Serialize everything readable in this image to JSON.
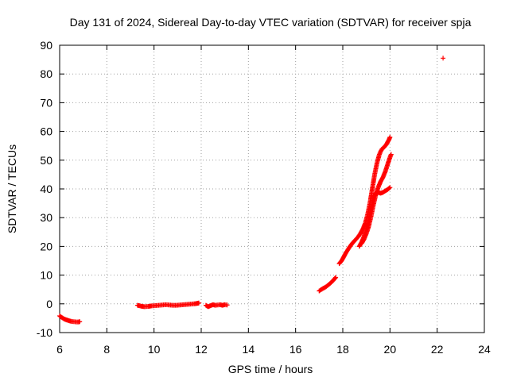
{
  "chart_data": {
    "type": "scatter",
    "title": "Day 131 of 2024, Sidereal Day-to-day VTEC variation (SDTVAR) for receiver spja",
    "xlabel": "GPS time / hours",
    "ylabel": "SDTVAR / TECUs",
    "xlim": [
      6,
      24
    ],
    "ylim": [
      -10,
      90
    ],
    "xticks": [
      "6",
      "8",
      "10",
      "12",
      "14",
      "16",
      "18",
      "20",
      "22",
      "24"
    ],
    "yticks": [
      "-10",
      "0",
      "10",
      "20",
      "30",
      "40",
      "50",
      "60",
      "70",
      "80",
      "90"
    ],
    "grid": true,
    "marker": "+",
    "color": "#ff0000",
    "series": [
      {
        "name": "SDTVAR",
        "segments": [
          [
            [
              6.0,
              -4.2
            ],
            [
              6.1,
              -4.8
            ],
            [
              6.2,
              -5.3
            ],
            [
              6.3,
              -5.6
            ],
            [
              6.4,
              -5.9
            ],
            [
              6.5,
              -6.1
            ],
            [
              6.6,
              -6.2
            ],
            [
              6.7,
              -6.3
            ],
            [
              6.8,
              -6.3
            ],
            [
              6.85,
              -6.2
            ]
          ],
          [
            [
              9.3,
              -0.5
            ],
            [
              9.45,
              -0.8
            ],
            [
              9.6,
              -1.0
            ],
            [
              9.75,
              -0.9
            ],
            [
              9.9,
              -0.7
            ],
            [
              10.05,
              -0.6
            ],
            [
              10.2,
              -0.5
            ],
            [
              10.35,
              -0.4
            ],
            [
              10.5,
              -0.3
            ],
            [
              10.65,
              -0.4
            ],
            [
              10.8,
              -0.5
            ],
            [
              10.95,
              -0.5
            ],
            [
              11.1,
              -0.4
            ],
            [
              11.25,
              -0.3
            ],
            [
              11.4,
              -0.2
            ],
            [
              11.55,
              -0.1
            ],
            [
              11.7,
              0.0
            ],
            [
              11.85,
              0.2
            ],
            [
              11.9,
              0.3
            ]
          ],
          [
            [
              12.2,
              -0.5
            ],
            [
              12.3,
              -1.0
            ],
            [
              12.4,
              -0.6
            ],
            [
              12.5,
              -0.3
            ],
            [
              12.6,
              -0.5
            ],
            [
              12.7,
              -0.4
            ],
            [
              12.8,
              -0.3
            ],
            [
              12.9,
              -0.5
            ],
            [
              13.0,
              -0.3
            ],
            [
              13.1,
              -0.4
            ]
          ],
          [
            [
              17.0,
              4.5
            ],
            [
              17.15,
              5.3
            ],
            [
              17.3,
              6.0
            ],
            [
              17.45,
              7.0
            ],
            [
              17.6,
              8.2
            ],
            [
              17.7,
              9.2
            ]
          ],
          [
            [
              17.85,
              14.0
            ],
            [
              17.95,
              15.0
            ],
            [
              18.05,
              16.5
            ],
            [
              18.15,
              18.0
            ],
            [
              18.25,
              19.3
            ],
            [
              18.35,
              20.5
            ],
            [
              18.45,
              21.5
            ],
            [
              18.55,
              22.4
            ],
            [
              18.65,
              23.3
            ],
            [
              18.75,
              24.5
            ],
            [
              18.85,
              26.0
            ],
            [
              18.95,
              28.0
            ],
            [
              19.05,
              31.0
            ],
            [
              19.15,
              35.0
            ],
            [
              19.25,
              40.0
            ],
            [
              19.35,
              45.0
            ],
            [
              19.45,
              49.0
            ],
            [
              19.55,
              52.0
            ],
            [
              19.65,
              53.8
            ],
            [
              19.75,
              54.5
            ],
            [
              19.85,
              55.5
            ],
            [
              19.95,
              57.0
            ],
            [
              20.0,
              58.0
            ]
          ],
          [
            [
              18.7,
              20.0
            ],
            [
              18.8,
              21.5
            ],
            [
              18.9,
              23.5
            ],
            [
              19.0,
              26.0
            ],
            [
              19.1,
              29.5
            ],
            [
              19.2,
              33.5
            ],
            [
              19.3,
              37.0
            ],
            [
              19.4,
              38.5
            ],
            [
              19.5,
              38.8
            ],
            [
              19.6,
              38.5
            ],
            [
              19.7,
              38.8
            ],
            [
              19.8,
              39.3
            ],
            [
              19.9,
              39.8
            ],
            [
              20.0,
              40.5
            ]
          ],
          [
            [
              18.8,
              21.0
            ],
            [
              18.9,
              22.5
            ],
            [
              19.0,
              24.5
            ],
            [
              19.1,
              27.0
            ],
            [
              19.2,
              30.5
            ],
            [
              19.3,
              34.5
            ],
            [
              19.4,
              38.0
            ],
            [
              19.5,
              40.5
            ],
            [
              19.6,
              42.5
            ],
            [
              19.7,
              44.0
            ],
            [
              19.8,
              46.0
            ],
            [
              19.9,
              48.5
            ],
            [
              20.0,
              51.0
            ],
            [
              20.05,
              52.0
            ]
          ],
          [
            [
              22.25,
              85.5
            ]
          ]
        ]
      }
    ]
  }
}
